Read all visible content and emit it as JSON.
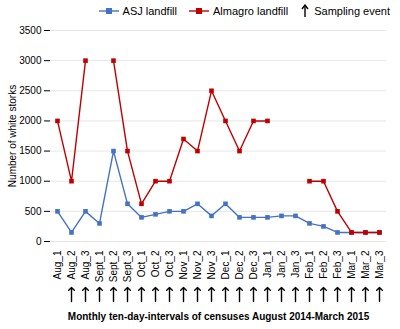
{
  "chart_data": {
    "type": "line",
    "categories": [
      "Aug_1",
      "Aug_2",
      "Aug_3",
      "Sept_1",
      "Sept_2",
      "Sept_3",
      "Oct_1",
      "Oct_2",
      "Oct_3",
      "Nov_1",
      "Nov_2",
      "Nov_3",
      "Dec_1",
      "Dec_2",
      "Dec_3",
      "Jan_1",
      "Jan_2",
      "Jan_3",
      "Feb_1",
      "Feb_2",
      "Feb_3",
      "Mar_1",
      "Mar_2",
      "Mar_3"
    ],
    "series": [
      {
        "name": "ASJ landfill",
        "color": "#4472C4",
        "marker": "square",
        "values": [
          500,
          150,
          500,
          300,
          1500,
          625,
          400,
          450,
          500,
          500,
          625,
          425,
          625,
          400,
          400,
          400,
          425,
          425,
          300,
          250,
          150,
          150,
          150,
          150
        ]
      },
      {
        "name": "Almagro landfill",
        "color": "#C00000",
        "marker": "square",
        "values": [
          2000,
          1000,
          3000,
          null,
          3000,
          1500,
          625,
          1000,
          1000,
          1700,
          1500,
          2500,
          2000,
          1500,
          2000,
          2000,
          null,
          null,
          1000,
          1000,
          500,
          150,
          150,
          150
        ]
      },
      {
        "name": "Sampling event",
        "type": "arrow",
        "color": "#000000",
        "categories": [
          "Aug_2",
          "Aug_3",
          "Sept_1",
          "Sept_2",
          "Sept_3",
          "Oct_1",
          "Oct_2",
          "Oct_3",
          "Nov_1",
          "Nov_2",
          "Nov_3",
          "Dec_1",
          "Dec_2",
          "Dec_3",
          "Jan_1",
          "Jan_2",
          "Jan_3",
          "Feb_1",
          "Feb_2",
          "Feb_3",
          "Mar_1",
          "Mar_2",
          "Mar_3"
        ]
      }
    ],
    "xlabel": "Monthly ten-day-intervals of censuses August 2014-March 2015",
    "ylabel": "Number of white storks",
    "ylim": [
      0,
      3500
    ],
    "yticks": [
      0,
      500,
      1000,
      1500,
      2000,
      2500,
      3000,
      3500
    ],
    "grid": true,
    "legend": "upper right"
  }
}
